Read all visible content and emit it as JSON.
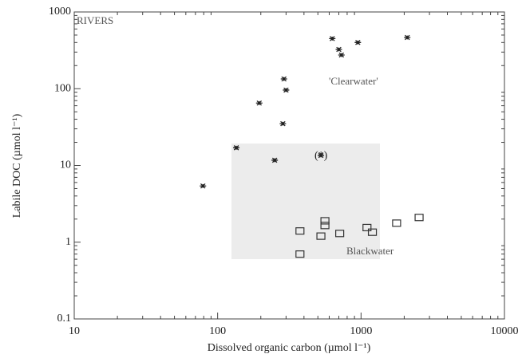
{
  "chart_data": {
    "type": "scatter",
    "xlabel": "Dissolved organic carbon (µmol l⁻¹)",
    "ylabel": "Labile DOC (µmol l⁻¹)",
    "annotations": [
      "RIVERS",
      "'Clearwater'",
      "(*)",
      "Blackwater"
    ],
    "xlog": true,
    "ylog": true,
    "xlim": [
      10,
      10000
    ],
    "ylim": [
      0.1,
      1000
    ],
    "xticks": [
      10,
      100,
      1000,
      10000
    ],
    "yticks": [
      0.1,
      1,
      10,
      100,
      1000
    ],
    "series": [
      {
        "marker": "asterisk",
        "color": "#222",
        "x": [
          79,
          135,
          250,
          195,
          285,
          290,
          300,
          525,
          630,
          700,
          730,
          950,
          2100
        ],
        "values": [
          5.4,
          17,
          11.7,
          65,
          35,
          134,
          96,
          13.5,
          450,
          325,
          275,
          400,
          465
        ]
      },
      {
        "marker": "square",
        "color": "#333",
        "x": [
          375,
          375,
          525,
          560,
          560,
          710,
          1100,
          1200,
          1770,
          2540
        ],
        "values": [
          1.4,
          0.7,
          1.2,
          1.9,
          1.65,
          1.3,
          1.55,
          1.35,
          1.77,
          2.1
        ]
      }
    ]
  }
}
